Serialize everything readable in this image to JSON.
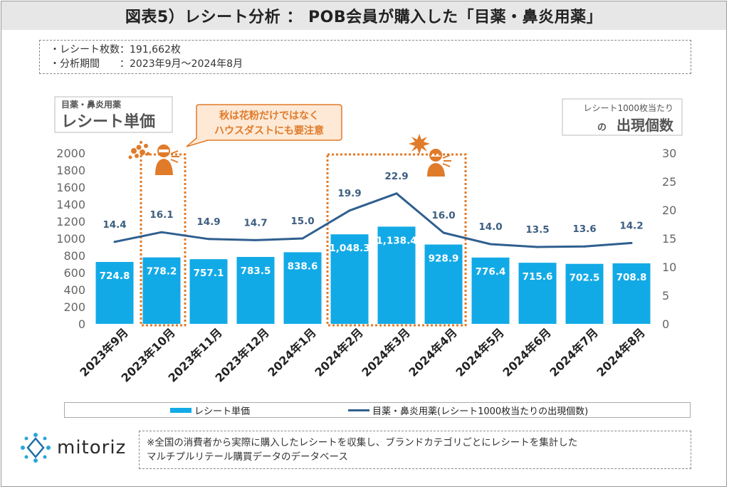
{
  "title": "図表5）レシート分析 ： POB会員が購入した「目薬・鼻炎用薬」",
  "info": {
    "receipts_label": "・レシート枚数：",
    "receipts_value": "191,662枚",
    "period_label": "・分析期間　　：",
    "period_value": "2023年9月～2024年8月"
  },
  "left_axis_title": {
    "small": "目薬・鼻炎用薬",
    "large": "レシート単価"
  },
  "right_axis_title": {
    "small": "レシート1000枚当たり",
    "prefix": "の",
    "large": "出現個数"
  },
  "callout": {
    "line1": "秋は花粉だけではなく",
    "line2": "ハウスダストにも要注意"
  },
  "legend": {
    "bar": "レシート単価",
    "line": "目薬・鼻炎用薬(レシート1000枚当たりの出現個数)"
  },
  "logo_text": "mitoriz",
  "note": {
    "line1": "※全国の消費者から実際に購入したレシートを収集し、ブランドカテゴリごとにレシートを集計した",
    "line2": "マルチプルリテール購買データのデータベース"
  },
  "colors": {
    "bar": "#12aae6",
    "line": "#2f5f8f",
    "highlight": "#e07b2a"
  },
  "icons": [
    "pollen-icon",
    "sneezing-person-icon",
    "house-dust-icon"
  ],
  "chart_data": {
    "type": "bar",
    "categories": [
      "2023年9月",
      "2023年10月",
      "2023年11月",
      "2023年12月",
      "2024年1月",
      "2024年2月",
      "2024年3月",
      "2024年4月",
      "2024年5月",
      "2024年6月",
      "2024年7月",
      "2024年8月"
    ],
    "series": [
      {
        "name": "レシート単価",
        "type": "bar",
        "axis": "left",
        "values": [
          724.8,
          778.2,
          757.1,
          783.5,
          838.6,
          1048.3,
          1138.4,
          928.9,
          776.4,
          715.6,
          702.5,
          708.8
        ],
        "labels": [
          "724.8",
          "778.2",
          "757.1",
          "783.5",
          "838.6",
          "1,048.3",
          "1,138.4",
          "928.9",
          "776.4",
          "715.6",
          "702.5",
          "708.8"
        ]
      },
      {
        "name": "目薬・鼻炎用薬(レシート1000枚当たりの出現個数)",
        "type": "line",
        "axis": "right",
        "values": [
          14.4,
          16.1,
          14.9,
          14.7,
          15.0,
          19.9,
          22.9,
          16.0,
          14.0,
          13.5,
          13.6,
          14.2
        ],
        "labels": [
          "14.4",
          "16.1",
          "14.9",
          "14.7",
          "15.0",
          "19.9",
          "22.9",
          "16.0",
          "14.0",
          "13.5",
          "13.6",
          "14.2"
        ]
      }
    ],
    "ylim_left": [
      0,
      2000
    ],
    "yticks_left": [
      "0",
      "200",
      "400",
      "600",
      "800",
      "1000",
      "1200",
      "1400",
      "1600",
      "1800",
      "2000"
    ],
    "ylim_right": [
      0,
      30
    ],
    "yticks_right": [
      "0",
      "5",
      "10",
      "15",
      "20",
      "25",
      "30"
    ],
    "highlight_ranges": [
      [
        1,
        1
      ],
      [
        5,
        7
      ]
    ],
    "grid": false,
    "legend_position": "bottom"
  }
}
